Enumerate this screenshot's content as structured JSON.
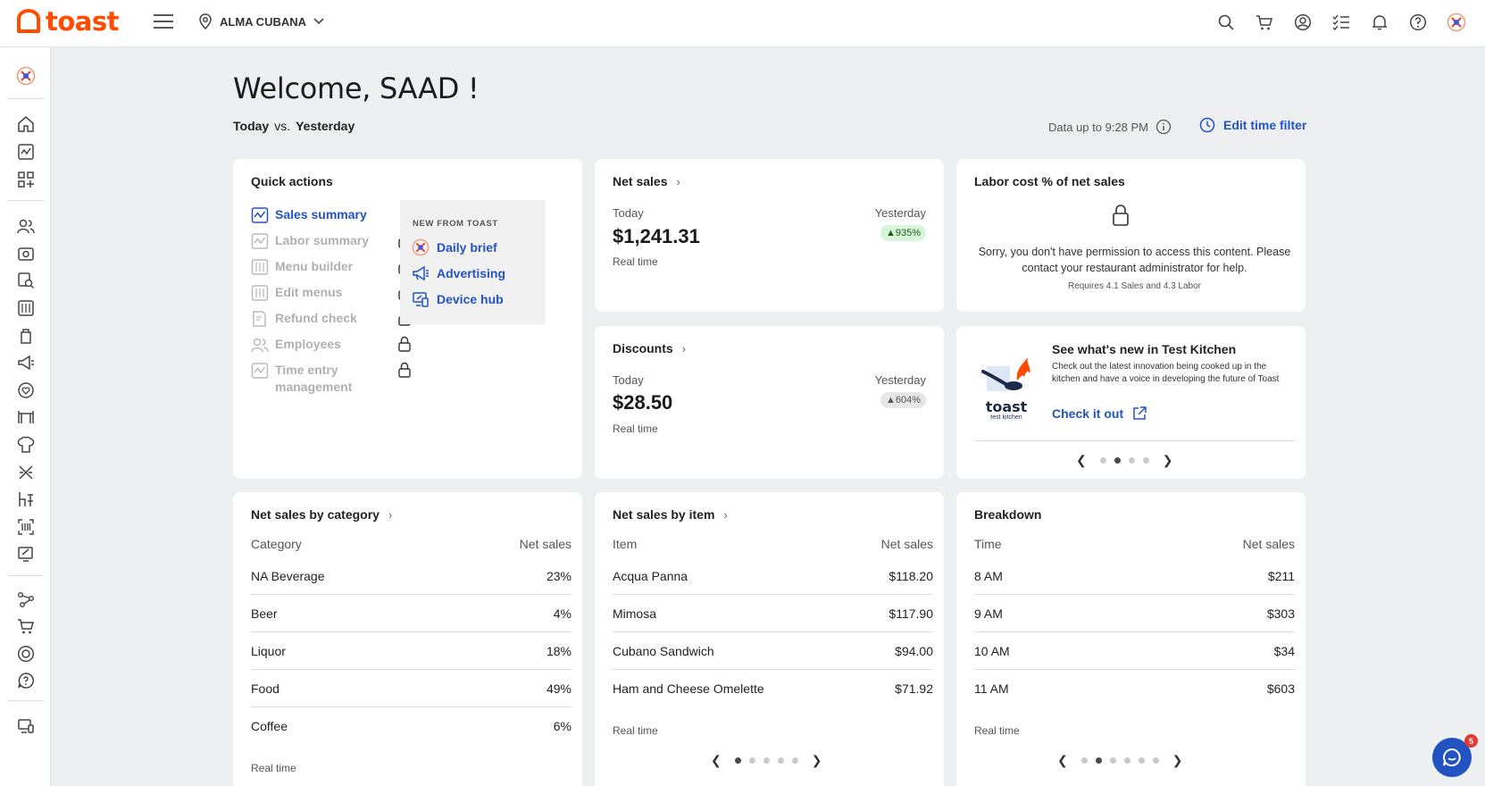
{
  "header": {
    "logo_text": "toast",
    "location": "ALMA CUBANA",
    "icons": [
      "search-icon",
      "cart-icon",
      "account-icon",
      "checklist-icon",
      "bell-icon",
      "help-icon",
      "avatar-icon"
    ]
  },
  "sidebar": {
    "icons": [
      "toast-home-icon",
      "home-icon",
      "analytics-icon",
      "apps-icon",
      "people-icon",
      "payroll-icon",
      "sales-search-icon",
      "menu-icon",
      "inventory-icon",
      "marketing-icon",
      "loyalty-icon",
      "tables-icon",
      "kitchen-icon",
      "integrations-icon",
      "floor-plan-icon",
      "devices-icon",
      "reports-icon",
      "network-icon",
      "shop-icon",
      "support-icon",
      "help-icon",
      "display-icon"
    ]
  },
  "page": {
    "welcome": "Welcome, SAAD !",
    "today": "Today",
    "vs": "vs.",
    "yesterday": "Yesterday",
    "data_up_to": "Data up to 9:28 PM",
    "edit_time_filter": "Edit time filter"
  },
  "quick_actions": {
    "title": "Quick actions",
    "items": [
      {
        "label": "Sales summary",
        "locked": false
      },
      {
        "label": "Labor summary",
        "locked": true
      },
      {
        "label": "Menu builder",
        "locked": true
      },
      {
        "label": "Edit menus",
        "locked": true
      },
      {
        "label": "Refund check",
        "locked": true
      },
      {
        "label": "Employees",
        "locked": true
      },
      {
        "label": "Time entry",
        "label2": "management",
        "locked": true
      }
    ],
    "new_from_toast": {
      "title": "NEW FROM TOAST",
      "items": [
        "Daily brief",
        "Advertising",
        "Device hub"
      ]
    }
  },
  "net_sales": {
    "title": "Net sales",
    "today_label": "Today",
    "yesterday_label": "Yesterday",
    "value": "$1,241.31",
    "change": "935%",
    "change_color": "#1b5e20",
    "realtime": "Real time"
  },
  "discounts": {
    "title": "Discounts",
    "today_label": "Today",
    "yesterday_label": "Yesterday",
    "value": "$28.50",
    "change": "604%",
    "realtime": "Real time"
  },
  "labor_cost": {
    "title": "Labor cost % of net sales",
    "message": "Sorry, you don't have permission to access this content. Please contact your restaurant administrator for help.",
    "requirement": "Requires 4.1 Sales and 4.3 Labor"
  },
  "test_kitchen": {
    "logo_word": "toast",
    "logo_sub": "test kitchen",
    "title": "See what's new in Test Kitchen",
    "description": "Check out the latest innovation being cooked up in the kitchen and have a voice in developing the future of Toast",
    "link": "Check it out",
    "active_dot": 1,
    "dots": 4
  },
  "sales_by_category": {
    "title": "Net sales by category",
    "col1": "Category",
    "col2": "Net sales",
    "rows": [
      {
        "name": "NA Beverage",
        "value": "23%"
      },
      {
        "name": "Beer",
        "value": "4%"
      },
      {
        "name": "Liquor",
        "value": "18%"
      },
      {
        "name": "Food",
        "value": "49%"
      },
      {
        "name": "Coffee",
        "value": "6%"
      }
    ],
    "realtime": "Real time"
  },
  "sales_by_item": {
    "title": "Net sales by item",
    "col1": "Item",
    "col2": "Net sales",
    "rows": [
      {
        "name": "Acqua Panna",
        "value": "$118.20"
      },
      {
        "name": "Mimosa",
        "value": "$117.90"
      },
      {
        "name": "Cubano Sandwich",
        "value": "$94.00"
      },
      {
        "name": "Ham and Cheese Omelette",
        "value": "$71.92"
      }
    ],
    "realtime": "Real time",
    "active_dot": 0,
    "dots": 5
  },
  "breakdown": {
    "title": "Breakdown",
    "col1": "Time",
    "col2": "Net sales",
    "rows": [
      {
        "name": "8 AM",
        "value": "$211"
      },
      {
        "name": "9 AM",
        "value": "$303"
      },
      {
        "name": "10 AM",
        "value": "$34"
      },
      {
        "name": "11 AM",
        "value": "$603"
      }
    ],
    "realtime": "Real time",
    "active_dot": 1,
    "dots": 6
  },
  "chat": {
    "badge": "5"
  },
  "colors": {
    "brand": "#ff4c00",
    "link": "#2353c1",
    "background": "#eeeff1"
  }
}
